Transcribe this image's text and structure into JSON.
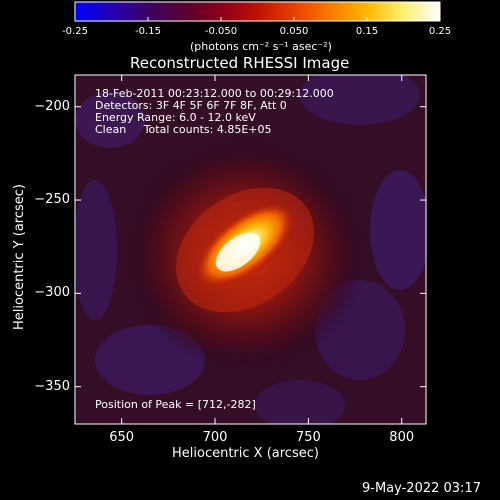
{
  "colorbar": {
    "ticks": [
      "-0.25",
      "-0.15",
      "-0.050",
      "0.050",
      "0.15",
      "0.25"
    ],
    "units": "(photons cm⁻² s⁻¹ asec⁻²)",
    "stops": [
      "#0000ff",
      "#2400b4",
      "#3c0064",
      "#5a0032",
      "#8a0018",
      "#c01000",
      "#e84000",
      "#fa7a00",
      "#ffb800",
      "#fff070",
      "#ffffff"
    ]
  },
  "info": {
    "line1": "18-Feb-2011 00:23:12.000 to 00:29:12.000",
    "line2": "Detectors: 3F 4F 5F 6F 7F 8F, Att 0",
    "line3": "Energy Range: 6.0 - 12.0 keV",
    "line4": "Clean     Total counts: 4.85E+05",
    "peak": "Position of Peak = [712,-282]"
  },
  "timestamp": "9-May-2022 03:17",
  "chart_data": {
    "type": "heatmap",
    "title": "Reconstructed RHESSI Image",
    "xlabel": "Heliocentric X (arcsec)",
    "ylabel": "Heliocentric Y (arcsec)",
    "xlim": [
      625,
      813
    ],
    "ylim": [
      -370,
      -183
    ],
    "xticks": [
      650,
      700,
      750,
      800
    ],
    "xtick_labels": [
      "650",
      "700",
      "750",
      "800"
    ],
    "yticks": [
      -200,
      -250,
      -300,
      -350
    ],
    "ytick_labels": [
      "−200",
      "−250",
      "−300",
      "−350"
    ],
    "colorbar_range": [
      -0.25,
      0.25
    ],
    "peak": {
      "x": 712,
      "y": -282
    }
  }
}
